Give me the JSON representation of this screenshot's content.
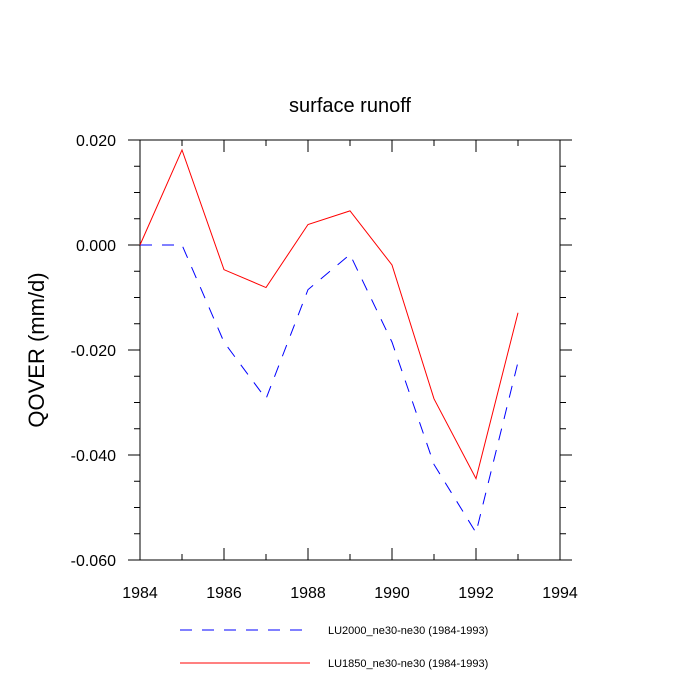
{
  "chart_data": {
    "type": "line",
    "title": "surface runoff",
    "xlabel": "",
    "ylabel": "QOVER  (mm/d)",
    "xlim": [
      1984,
      1994
    ],
    "ylim": [
      -0.06,
      0.02
    ],
    "x_ticks": [
      1984,
      1986,
      1988,
      1990,
      1992,
      1994
    ],
    "x_tick_labels": [
      "1984",
      "1986",
      "1988",
      "1990",
      "1992",
      "1994"
    ],
    "y_ticks": [
      0.02,
      0.0,
      -0.02,
      -0.04,
      -0.06
    ],
    "y_tick_labels": [
      "0.020",
      "0.000",
      "-0.020",
      "-0.040",
      "-0.060"
    ],
    "x": [
      1984,
      1985,
      1986,
      1987,
      1988,
      1989,
      1990,
      1991,
      1992,
      1993
    ],
    "series": [
      {
        "name": "LU2000_ne30-ne30 (1984-1993)",
        "color": "#0000ff",
        "style": "dashed",
        "values": [
          0.0,
          0.0,
          -0.0185,
          -0.0293,
          -0.0085,
          -0.0018,
          -0.0185,
          -0.0418,
          -0.0548,
          -0.0223
        ]
      },
      {
        "name": "LU1850_ne30-ne30 (1984-1993)",
        "color": "#ff0000",
        "style": "solid",
        "values": [
          0.0,
          0.0181,
          -0.0047,
          -0.0081,
          0.0039,
          0.0065,
          -0.0038,
          -0.0293,
          -0.0445,
          -0.0129
        ]
      }
    ],
    "grid": false,
    "legend_position": "bottom"
  }
}
